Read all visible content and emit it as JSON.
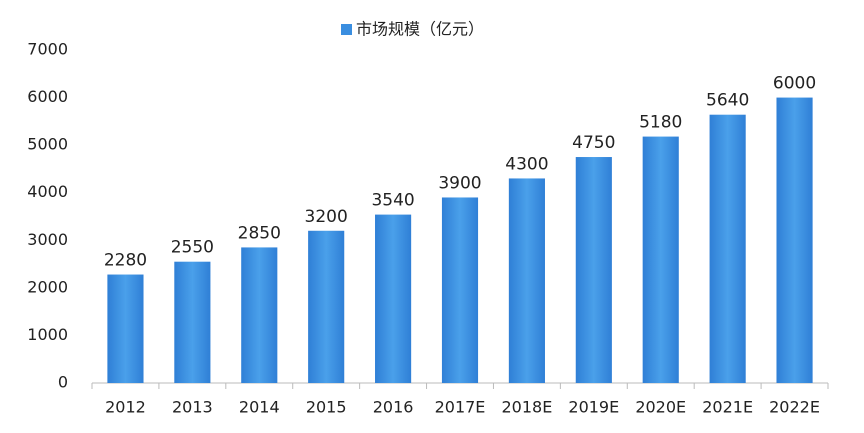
{
  "chart_data": {
    "type": "bar",
    "categories": [
      "2012",
      "2013",
      "2014",
      "2015",
      "2016",
      "2017E",
      "2018E",
      "2019E",
      "2020E",
      "2021E",
      "2022E"
    ],
    "series": [
      {
        "name": "市场规模（亿元）",
        "color": "#3a8ee0",
        "values": [
          2280,
          2550,
          2850,
          3200,
          3540,
          3900,
          4300,
          4750,
          5180,
          5640,
          6000
        ]
      }
    ],
    "ylim": [
      0,
      7000
    ],
    "yticks": [
      0,
      1000,
      2000,
      3000,
      4000,
      5000,
      6000,
      7000
    ],
    "grid": false,
    "legend": "top"
  }
}
